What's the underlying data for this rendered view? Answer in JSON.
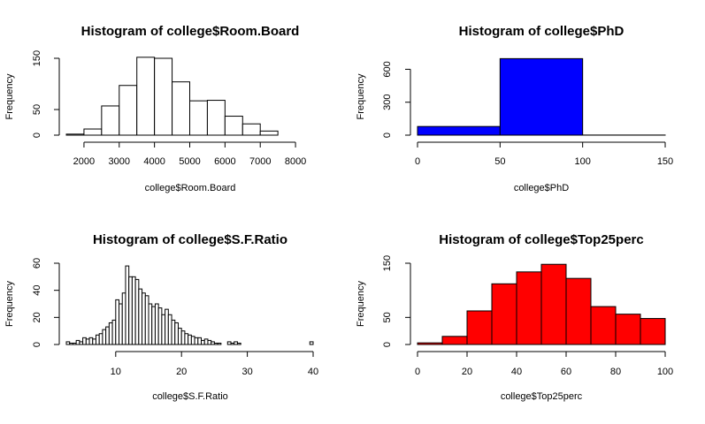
{
  "chart_data": [
    {
      "type": "bar",
      "title": "Histogram of college$Room.Board",
      "xlabel": "college$Room.Board",
      "ylabel": "Frequency",
      "fill": "#ffffff",
      "xlim": [
        1500,
        8500
      ],
      "ylim": [
        0,
        150
      ],
      "xticks": [
        2000,
        3000,
        4000,
        5000,
        6000,
        7000,
        8000
      ],
      "yticks": [
        0,
        50,
        150
      ],
      "bin_edges": [
        1500,
        2000,
        2500,
        3000,
        3500,
        4000,
        4500,
        5000,
        5500,
        6000,
        6500,
        7000,
        7500,
        8000
      ],
      "values": [
        2,
        12,
        57,
        97,
        152,
        150,
        104,
        67,
        68,
        37,
        22,
        8,
        0
      ]
    },
    {
      "type": "bar",
      "title": "Histogram of college$PhD",
      "xlabel": "college$PhD",
      "ylabel": "Frequency",
      "fill": "#0000ff",
      "xlim": [
        0,
        150
      ],
      "ylim": [
        0,
        700
      ],
      "xticks": [
        0,
        50,
        100,
        150
      ],
      "yticks": [
        0,
        300,
        600
      ],
      "bin_edges": [
        0,
        50,
        100,
        150
      ],
      "values": [
        79,
        697,
        1
      ]
    },
    {
      "type": "bar",
      "title": "Histogram of college$S.F.Ratio",
      "xlabel": "college$S.F.Ratio",
      "ylabel": "Frequency",
      "fill": "#ffffff",
      "xlim": [
        2.5,
        40
      ],
      "ylim": [
        0,
        60
      ],
      "xticks": [
        10,
        20,
        30,
        40
      ],
      "yticks": [
        0,
        20,
        40,
        60
      ],
      "bin_edges": [
        2.5,
        3,
        3.5,
        4,
        4.5,
        5,
        5.5,
        6,
        6.5,
        7,
        7.5,
        8,
        8.5,
        9,
        9.5,
        10,
        10.5,
        11,
        11.5,
        12,
        12.5,
        13,
        13.5,
        14,
        14.5,
        15,
        15.5,
        16,
        16.5,
        17,
        17.5,
        18,
        18.5,
        19,
        19.5,
        20,
        20.5,
        21,
        21.5,
        22,
        22.5,
        23,
        23.5,
        24,
        24.5,
        25,
        25.5,
        26,
        26.5,
        27,
        27.5,
        28,
        28.5,
        29,
        29.5,
        30,
        30.5,
        31,
        31.5,
        32,
        32.5,
        33,
        33.5,
        34,
        34.5,
        35,
        35.5,
        36,
        36.5,
        37,
        37.5,
        38,
        38.5,
        39,
        39.5,
        40
      ],
      "values": [
        2,
        1,
        1,
        3,
        2,
        5,
        4,
        5,
        4,
        7,
        8,
        11,
        13,
        16,
        18,
        33,
        30,
        38,
        58,
        50,
        50,
        48,
        41,
        38,
        36,
        30,
        28,
        30,
        27,
        22,
        26,
        22,
        18,
        16,
        12,
        10,
        8,
        7,
        6,
        5,
        5,
        3,
        4,
        3,
        2,
        1,
        1,
        0,
        0,
        2,
        1,
        2,
        1,
        0,
        0,
        0,
        0,
        0,
        0,
        0,
        0,
        0,
        0,
        0,
        0,
        0,
        0,
        0,
        0,
        0,
        0,
        0,
        0,
        0,
        2
      ]
    },
    {
      "type": "bar",
      "title": "Histogram of college$Top25perc",
      "xlabel": "college$Top25perc",
      "ylabel": "Frequency",
      "fill": "#ff0000",
      "xlim": [
        0,
        100
      ],
      "ylim": [
        0,
        150
      ],
      "xticks": [
        0,
        20,
        40,
        60,
        80,
        100
      ],
      "yticks": [
        0,
        50,
        150
      ],
      "bin_edges": [
        0,
        10,
        20,
        30,
        40,
        50,
        60,
        70,
        80,
        90,
        100
      ],
      "values": [
        3,
        15,
        62,
        112,
        134,
        148,
        122,
        70,
        56,
        48
      ]
    }
  ]
}
